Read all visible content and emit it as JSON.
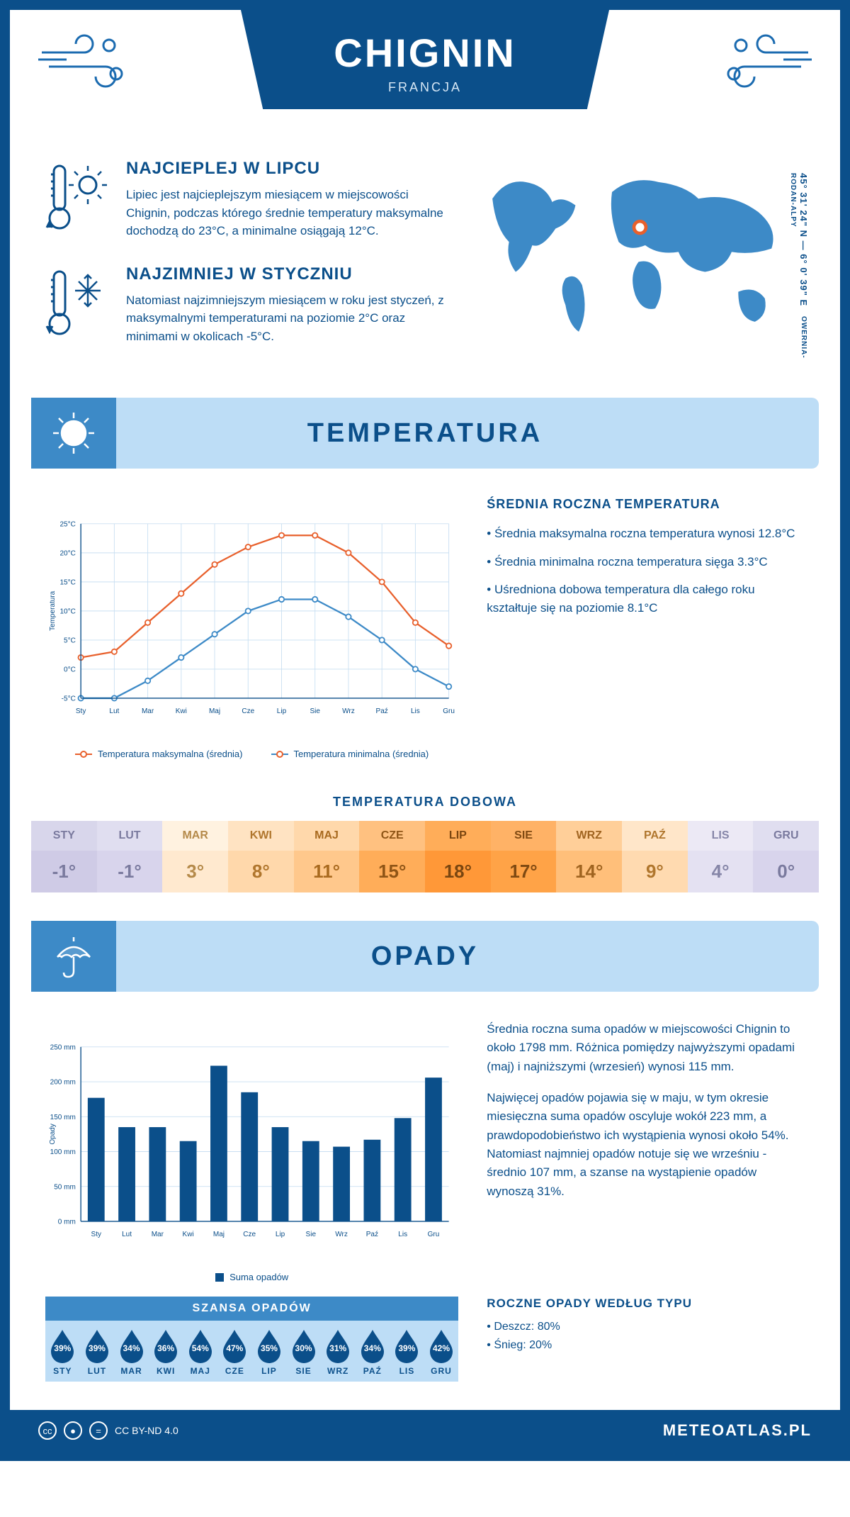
{
  "header": {
    "city": "CHIGNIN",
    "country": "FRANCJA"
  },
  "coords": "45° 31' 24\" N — 6° 0' 39\" E",
  "region": "OWERNIA-RODAN-ALPY",
  "intro": {
    "hot": {
      "title": "NAJCIEPLEJ W LIPCU",
      "text": "Lipiec jest najcieplejszym miesiącem w miejscowości Chignin, podczas którego średnie temperatury maksymalne dochodzą do 23°C, a minimalne osiągają 12°C."
    },
    "cold": {
      "title": "NAJZIMNIEJ W STYCZNIU",
      "text": "Natomiast najzimniejszym miesiącem w roku jest styczeń, z maksymalnymi temperaturami na poziomie 2°C oraz minimami w okolicach -5°C."
    }
  },
  "sections": {
    "temp": "TEMPERATURA",
    "precip": "OPADY"
  },
  "temp_chart": {
    "type": "line",
    "months": [
      "Sty",
      "Lut",
      "Mar",
      "Kwi",
      "Maj",
      "Cze",
      "Lip",
      "Sie",
      "Wrz",
      "Paź",
      "Lis",
      "Gru"
    ],
    "ylabel": "Temperatura",
    "ylim": [
      -5,
      25
    ],
    "ytick_step": 5,
    "series": {
      "max": {
        "label": "Temperatura maksymalna (średnia)",
        "color": "#e8602c",
        "values": [
          2,
          3,
          8,
          13,
          18,
          21,
          23,
          23,
          20,
          15,
          8,
          4
        ]
      },
      "min": {
        "label": "Temperatura minimalna (średnia)",
        "color": "#3d8ac7",
        "values": [
          -5,
          -5,
          -2,
          2,
          6,
          10,
          12,
          12,
          9,
          5,
          0,
          -3
        ]
      }
    },
    "grid_color": "#c9dff2",
    "bg": "#ffffff"
  },
  "temp_info": {
    "title": "ŚREDNIA ROCZNA TEMPERATURA",
    "p1": "• Średnia maksymalna roczna temperatura wynosi 12.8°C",
    "p2": "• Średnia minimalna roczna temperatura sięga 3.3°C",
    "p3": "• Uśredniona dobowa temperatura dla całego roku kształtuje się na poziomie 8.1°C"
  },
  "daily": {
    "title": "TEMPERATURA DOBOWA",
    "months": [
      "STY",
      "LUT",
      "MAR",
      "KWI",
      "MAJ",
      "CZE",
      "LIP",
      "SIE",
      "WRZ",
      "PAŹ",
      "LIS",
      "GRU"
    ],
    "values": [
      "-1°",
      "-1°",
      "3°",
      "8°",
      "11°",
      "15°",
      "18°",
      "17°",
      "14°",
      "9°",
      "4°",
      "0°"
    ],
    "head_colors": [
      "#d8d6eb",
      "#e0def0",
      "#fff2e0",
      "#ffe3c2",
      "#ffd8ab",
      "#ffc180",
      "#ffad59",
      "#ffb266",
      "#ffcf99",
      "#ffe6c9",
      "#ece9f5",
      "#e0def0"
    ],
    "val_colors": [
      "#cfcbe6",
      "#d8d4ec",
      "#ffe9cf",
      "#ffd8ab",
      "#ffc88c",
      "#ffad59",
      "#ff9838",
      "#ffa347",
      "#ffbf7a",
      "#ffdab0",
      "#e4e1f2",
      "#d8d4ec"
    ],
    "text_colors": [
      "#7a7a9e",
      "#7a7a9e",
      "#b58a4a",
      "#b0762d",
      "#a96a1f",
      "#8f5516",
      "#7a4610",
      "#804a12",
      "#a06420",
      "#b0762d",
      "#8686a8",
      "#7a7a9e"
    ]
  },
  "precip_chart": {
    "type": "bar",
    "months": [
      "Sty",
      "Lut",
      "Mar",
      "Kwi",
      "Maj",
      "Cze",
      "Lip",
      "Sie",
      "Wrz",
      "Paź",
      "Lis",
      "Gru"
    ],
    "ylabel": "Opady",
    "legend": "Suma opadów",
    "ylim": [
      0,
      250
    ],
    "ytick_step": 50,
    "bar_color": "#0b4f8a",
    "values": [
      177,
      135,
      135,
      115,
      223,
      185,
      135,
      115,
      107,
      117,
      148,
      206
    ],
    "bar_width": 0.55,
    "grid_color": "#c9dff2"
  },
  "precip_info": {
    "p1": "Średnia roczna suma opadów w miejscowości Chignin to około 1798 mm. Różnica pomiędzy najwyższymi opadami (maj) i najniższymi (wrzesień) wynosi 115 mm.",
    "p2": "Najwięcej opadów pojawia się w maju, w tym okresie miesięczna suma opadów oscyluje wokół 223 mm, a prawdopodobieństwo ich wystąpienia wynosi około 54%. Natomiast najmniej opadów notuje się we wrześniu - średnio 107 mm, a szanse na wystąpienie opadów wynoszą 31%."
  },
  "chance": {
    "title": "SZANSA OPADÓW",
    "months": [
      "STY",
      "LUT",
      "MAR",
      "KWI",
      "MAJ",
      "CZE",
      "LIP",
      "SIE",
      "WRZ",
      "PAŹ",
      "LIS",
      "GRU"
    ],
    "pct": [
      "39%",
      "39%",
      "34%",
      "36%",
      "54%",
      "47%",
      "35%",
      "30%",
      "31%",
      "34%",
      "39%",
      "42%"
    ],
    "drop_color": "#0b4f8a"
  },
  "type": {
    "title": "ROCZNE OPADY WEDŁUG TYPU",
    "rain": "• Deszcz: 80%",
    "snow": "• Śnieg: 20%"
  },
  "footer": {
    "license": "CC BY-ND 4.0",
    "site": "METEOATLAS.PL"
  },
  "colors": {
    "primary": "#0b4f8a",
    "light": "#bdddf6",
    "mid": "#3d8ac7"
  }
}
